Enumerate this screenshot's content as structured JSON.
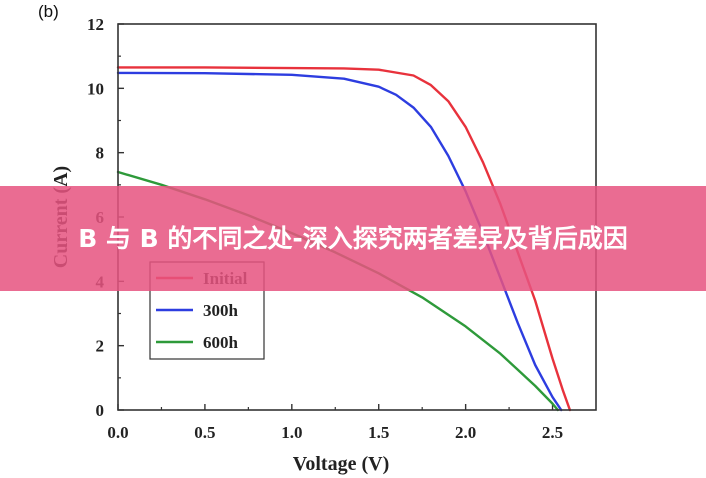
{
  "panel_label": "(b)",
  "banner": {
    "text": "B 与 B 的不同之处-深入探究两者差异及背后成因"
  },
  "chart_data": {
    "type": "line",
    "xlabel": "Voltage (V)",
    "ylabel": "Current (A)",
    "xlim": [
      0,
      2.75
    ],
    "ylim": [
      0,
      12
    ],
    "xticks": [
      "0.0",
      "0.5",
      "1.0",
      "1.5",
      "2.0",
      "2.5"
    ],
    "xtick_values": [
      0,
      0.5,
      1.0,
      1.5,
      2.0,
      2.5
    ],
    "yticks": [
      "0",
      "2",
      "4",
      "6",
      "8",
      "10",
      "12"
    ],
    "ytick_values": [
      0,
      2,
      4,
      6,
      8,
      10,
      12
    ],
    "legend_position": "lower-left",
    "series": [
      {
        "name": "Initial",
        "color": "#e8323c",
        "x": [
          0,
          0.5,
          1.0,
          1.3,
          1.5,
          1.7,
          1.8,
          1.9,
          2.0,
          2.1,
          2.2,
          2.3,
          2.4,
          2.5,
          2.56,
          2.6
        ],
        "y": [
          10.65,
          10.65,
          10.63,
          10.62,
          10.58,
          10.4,
          10.1,
          9.6,
          8.8,
          7.7,
          6.4,
          4.9,
          3.4,
          1.6,
          0.6,
          0
        ]
      },
      {
        "name": "300h",
        "color": "#2d3de0",
        "x": [
          0,
          0.5,
          1.0,
          1.3,
          1.5,
          1.6,
          1.7,
          1.8,
          1.9,
          2.0,
          2.1,
          2.2,
          2.3,
          2.4,
          2.5,
          2.55
        ],
        "y": [
          10.48,
          10.47,
          10.42,
          10.3,
          10.05,
          9.8,
          9.4,
          8.8,
          7.9,
          6.8,
          5.5,
          4.1,
          2.7,
          1.4,
          0.4,
          0
        ]
      },
      {
        "name": "600h",
        "color": "#2e9a3a",
        "x": [
          0,
          0.25,
          0.5,
          0.75,
          1.0,
          1.25,
          1.5,
          1.75,
          2.0,
          2.2,
          2.3,
          2.4,
          2.5,
          2.53
        ],
        "y": [
          7.4,
          7.0,
          6.55,
          6.05,
          5.5,
          4.9,
          4.25,
          3.5,
          2.6,
          1.75,
          1.25,
          0.75,
          0.2,
          0
        ]
      }
    ]
  }
}
